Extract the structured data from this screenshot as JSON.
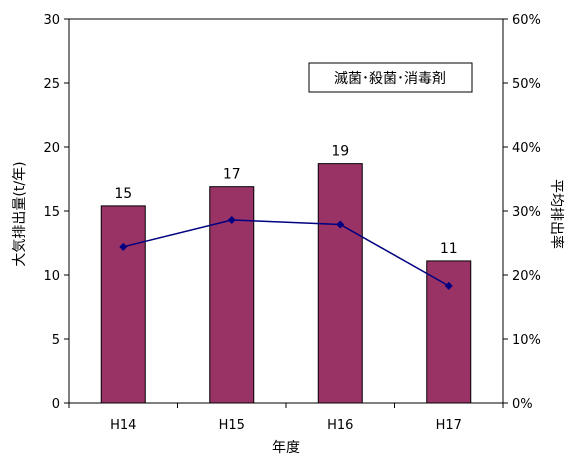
{
  "chart_data": {
    "type": "bar",
    "legend_text": "滅菌･殺菌･消毒剤",
    "legend_position": "top-right",
    "xlabel": "年度",
    "ylabel": "大気排出量(t/年)",
    "y2label": "平均排出率",
    "categories": [
      "H14",
      "H15",
      "H16",
      "H17"
    ],
    "series": [
      {
        "values": [
          15.4,
          16.9,
          18.7,
          11.1
        ],
        "data_labels": [
          "15",
          "17",
          "19",
          "11"
        ],
        "color": "#993366",
        "axis": "left",
        "kind": "bar"
      },
      {
        "values": [
          24.4,
          28.6,
          27.9,
          18.3
        ],
        "color": "#000080",
        "axis": "right",
        "kind": "line"
      }
    ],
    "ylim": [
      0,
      30
    ],
    "y2lim": [
      0,
      60
    ],
    "yticks": [
      "0",
      "5",
      "10",
      "15",
      "20",
      "25",
      "30"
    ],
    "y2ticks": [
      "0%",
      "10%",
      "20%",
      "30%",
      "40%",
      "50%",
      "60%"
    ],
    "grid": false
  }
}
